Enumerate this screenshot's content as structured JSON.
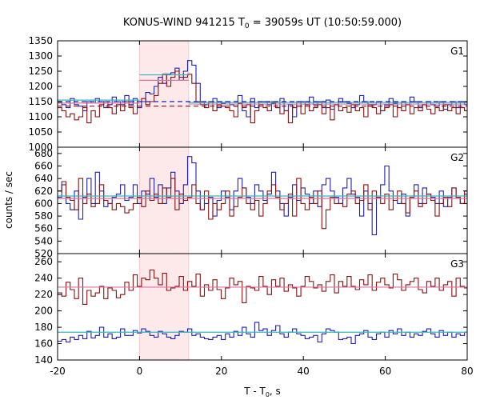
{
  "title_main": "KONUS-WIND 941215 T",
  "title_sub": "0",
  "title_rest": " = 39059s UT (10:50:59.000)",
  "xlabel_main": "T - T",
  "xlabel_sub": "0",
  "xlabel_rest": ", s",
  "ylabel": "counts / sec",
  "chart_data": [
    {
      "type": "line",
      "panel": "G1",
      "label": "G1",
      "xlim": [
        -20,
        80
      ],
      "ylim": [
        1000,
        1350
      ],
      "yticks": [
        1000,
        1050,
        1100,
        1150,
        1200,
        1250,
        1300,
        1350
      ],
      "xticks": [
        -20,
        0,
        20,
        40,
        60,
        80
      ],
      "shaded_interval": [
        0,
        12
      ],
      "series": [
        {
          "color": "#2020b0",
          "step": 1.024,
          "x0": -20,
          "values": [
            1148,
            1140,
            1130,
            1160,
            1140,
            1135,
            1120,
            1150,
            1145,
            1160,
            1150,
            1130,
            1140,
            1165,
            1150,
            1140,
            1170,
            1140,
            1160,
            1130,
            1150,
            1180,
            1175,
            1200,
            1230,
            1210,
            1240,
            1245,
            1260,
            1230,
            1250,
            1285,
            1270,
            1210,
            1150,
            1140,
            1150,
            1160,
            1130,
            1145,
            1150,
            1140,
            1135,
            1170,
            1120,
            1100,
            1160,
            1130,
            1150,
            1150,
            1140,
            1145,
            1130,
            1160,
            1120,
            1140,
            1100,
            1135,
            1150,
            1140,
            1165,
            1140,
            1150,
            1130,
            1155,
            1125,
            1140,
            1160,
            1150,
            1145,
            1130,
            1140,
            1170,
            1150,
            1135,
            1140,
            1150,
            1120,
            1140,
            1160,
            1145,
            1130,
            1150,
            1140,
            1165,
            1150,
            1130,
            1140,
            1150,
            1140,
            1135,
            1150,
            1125,
            1140,
            1150,
            1130,
            1150,
            1140
          ]
        },
        {
          "color": "#8b1010",
          "step": 1.024,
          "x0": -20,
          "values": [
            1130,
            1120,
            1100,
            1110,
            1090,
            1100,
            1130,
            1080,
            1120,
            1100,
            1140,
            1150,
            1130,
            1110,
            1140,
            1120,
            1150,
            1130,
            1110,
            1150,
            1160,
            1140,
            1150,
            1170,
            1210,
            1240,
            1200,
            1230,
            1250,
            1220,
            1230,
            1240,
            1210,
            1150,
            1140,
            1130,
            1150,
            1120,
            1140,
            1135,
            1130,
            1120,
            1100,
            1145,
            1130,
            1140,
            1080,
            1120,
            1140,
            1130,
            1120,
            1150,
            1130,
            1110,
            1120,
            1080,
            1130,
            1150,
            1110,
            1140,
            1120,
            1130,
            1140,
            1110,
            1130,
            1090,
            1140,
            1120,
            1130,
            1115,
            1140,
            1120,
            1130,
            1100,
            1140,
            1130,
            1110,
            1120,
            1130,
            1140,
            1100,
            1130,
            1120,
            1140,
            1110,
            1130,
            1120,
            1140,
            1125,
            1110,
            1130,
            1120,
            1140,
            1120,
            1130,
            1110,
            1130,
            1120
          ]
        },
        {
          "color": "#30b8c0",
          "style": "solid",
          "flat": true,
          "segments": [
            [
              -20,
              0,
              1155
            ],
            [
              0,
              12,
              1238
            ],
            [
              12,
              80,
              1147
            ]
          ]
        },
        {
          "color": "#e070a0",
          "style": "solid",
          "flat": true,
          "segments": [
            [
              -20,
              0,
              1145
            ],
            [
              0,
              12,
              1220
            ],
            [
              12,
              80,
              1142
            ]
          ]
        },
        {
          "color": "#2020b0",
          "style": "dashed",
          "flat": true,
          "segments": [
            [
              -20,
              80,
              1150
            ]
          ]
        },
        {
          "color": "#8b1010",
          "style": "dashed",
          "flat": true,
          "segments": [
            [
              -20,
              80,
              1135
            ]
          ]
        }
      ]
    },
    {
      "type": "line",
      "panel": "G2",
      "label": "G2",
      "xlim": [
        -20,
        80
      ],
      "ylim": [
        520,
        690
      ],
      "yticks": [
        520,
        540,
        560,
        580,
        600,
        620,
        640,
        660,
        680
      ],
      "xticks": [
        -20,
        0,
        20,
        40,
        60,
        80
      ],
      "shaded_interval": [
        0,
        12
      ],
      "series": [
        {
          "color": "#2020b0",
          "step": 1.024,
          "x0": -20,
          "values": [
            610,
            630,
            600,
            590,
            620,
            575,
            610,
            640,
            600,
            650,
            620,
            595,
            600,
            610,
            615,
            630,
            605,
            610,
            630,
            600,
            620,
            615,
            640,
            610,
            630,
            600,
            625,
            650,
            620,
            600,
            630,
            675,
            665,
            620,
            590,
            600,
            610,
            580,
            605,
            620,
            610,
            590,
            620,
            640,
            625,
            610,
            600,
            630,
            620,
            605,
            615,
            650,
            620,
            600,
            580,
            610,
            630,
            605,
            625,
            615,
            600,
            620,
            595,
            630,
            640,
            620,
            610,
            600,
            625,
            640,
            615,
            610,
            580,
            620,
            600,
            550,
            610,
            630,
            660,
            620,
            605,
            600,
            615,
            580,
            610,
            630,
            600,
            625,
            615,
            610,
            600,
            620,
            595,
            610,
            625,
            610,
            600,
            615
          ]
        },
        {
          "color": "#8b1010",
          "step": 1.024,
          "x0": -20,
          "values": [
            620,
            635,
            610,
            605,
            590,
            640,
            600,
            615,
            595,
            600,
            630,
            605,
            600,
            590,
            600,
            595,
            585,
            590,
            600,
            610,
            595,
            620,
            605,
            615,
            600,
            625,
            610,
            640,
            590,
            615,
            605,
            610,
            630,
            600,
            590,
            620,
            575,
            600,
            590,
            600,
            620,
            580,
            595,
            610,
            625,
            600,
            590,
            605,
            580,
            600,
            620,
            630,
            610,
            590,
            600,
            615,
            580,
            640,
            600,
            590,
            610,
            600,
            620,
            560,
            590,
            610,
            600,
            600,
            595,
            615,
            620,
            600,
            605,
            630,
            590,
            620,
            610,
            600,
            615,
            590,
            605,
            620,
            600,
            585,
            610,
            620,
            595,
            600,
            615,
            605,
            580,
            600,
            610,
            595,
            625,
            610,
            600,
            620
          ]
        },
        {
          "color": "#30b8c0",
          "style": "solid",
          "flat": true,
          "segments": [
            [
              -20,
              80,
              612
            ]
          ]
        },
        {
          "color": "#e070a0",
          "style": "solid",
          "flat": true,
          "segments": [
            [
              -20,
              80,
              608
            ]
          ]
        }
      ]
    },
    {
      "type": "line",
      "panel": "G3",
      "label": "G3",
      "xlim": [
        -20,
        80
      ],
      "ylim": [
        140,
        270
      ],
      "yticks": [
        140,
        160,
        180,
        200,
        220,
        240,
        260
      ],
      "xticks": [
        -20,
        0,
        20,
        40,
        60,
        80
      ],
      "shaded_interval": [
        0,
        12
      ],
      "series": [
        {
          "color": "#8b1010",
          "step": 1.024,
          "x0": -20,
          "values": [
            222,
            218,
            235,
            226,
            215,
            240,
            208,
            225,
            218,
            222,
            230,
            215,
            228,
            225,
            216,
            220,
            235,
            225,
            244,
            230,
            240,
            238,
            250,
            240,
            232,
            246,
            225,
            228,
            230,
            242,
            225,
            236,
            230,
            245,
            218,
            232,
            225,
            238,
            226,
            215,
            228,
            240,
            232,
            236,
            210,
            230,
            228,
            225,
            242,
            230,
            220,
            238,
            230,
            240,
            224,
            232,
            228,
            218,
            230,
            242,
            236,
            228,
            232,
            224,
            236,
            244,
            222,
            236,
            230,
            242,
            230,
            226,
            238,
            232,
            244,
            225,
            235,
            240,
            232,
            228,
            245,
            238,
            225,
            232,
            236,
            240,
            226,
            222,
            236,
            230,
            240,
            225,
            232,
            236,
            218,
            240,
            230,
            228
          ]
        },
        {
          "color": "#2020b0",
          "step": 1.024,
          "x0": -20,
          "values": [
            163,
            165,
            162,
            168,
            165,
            170,
            166,
            175,
            167,
            170,
            180,
            168,
            172,
            166,
            168,
            178,
            170,
            170,
            176,
            173,
            178,
            175,
            170,
            168,
            175,
            172,
            168,
            166,
            170,
            175,
            174,
            178,
            170,
            172,
            168,
            166,
            165,
            168,
            170,
            165,
            172,
            168,
            175,
            170,
            180,
            172,
            168,
            186,
            176,
            178,
            170,
            176,
            182,
            172,
            168,
            174,
            178,
            172,
            170,
            166,
            168,
            170,
            162,
            172,
            178,
            176,
            174,
            165,
            166,
            168,
            160,
            170,
            172,
            176,
            168,
            165,
            172,
            174,
            168,
            176,
            172,
            178,
            170,
            174,
            168,
            172,
            170,
            175,
            178,
            172,
            168,
            176,
            170,
            174,
            168,
            172,
            170,
            174
          ]
        },
        {
          "color": "#30b8c0",
          "style": "solid",
          "flat": true,
          "segments": [
            [
              -20,
              80,
              174
            ]
          ]
        },
        {
          "color": "#e070a0",
          "style": "solid",
          "flat": true,
          "segments": [
            [
              -20,
              80,
              229
            ]
          ]
        }
      ]
    }
  ]
}
